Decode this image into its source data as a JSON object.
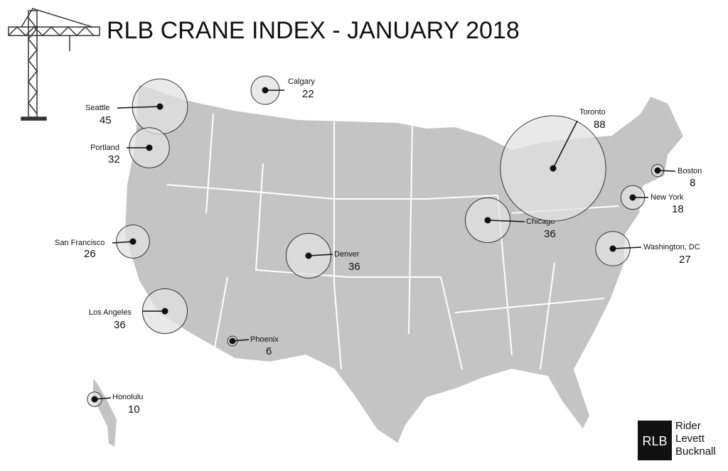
{
  "title": "RLB CRANE INDEX  - JANUARY 2018",
  "cities": [
    {
      "name": "Calgary",
      "value": 22
    },
    {
      "name": "Seattle",
      "value": 45
    },
    {
      "name": "Portland",
      "value": 32
    },
    {
      "name": "San Francisco",
      "value": 26
    },
    {
      "name": "Los Angeles",
      "value": 36
    },
    {
      "name": "Phoenix",
      "value": 6
    },
    {
      "name": "Honolulu",
      "value": 10
    },
    {
      "name": "Denver",
      "value": 36
    },
    {
      "name": "Chicago",
      "value": 36
    },
    {
      "name": "Toronto",
      "value": 88
    },
    {
      "name": "Boston",
      "value": 8
    },
    {
      "name": "New York",
      "value": 18
    },
    {
      "name": "Washington, DC",
      "value": 27
    }
  ],
  "logo": {
    "mark": "RLB",
    "lines": [
      "Rider",
      "Levett",
      "Bucknall"
    ]
  }
}
